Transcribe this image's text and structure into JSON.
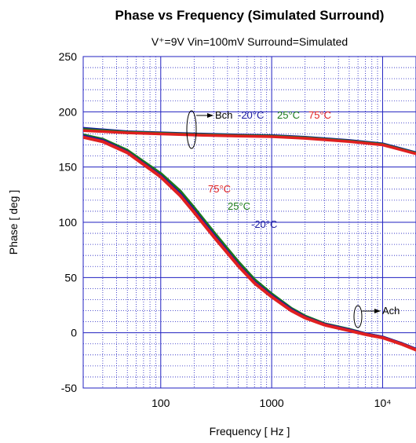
{
  "chart_data": {
    "type": "line",
    "title": "Phase vs Frequency (Simulated Surround)",
    "subtitle": "V⁺=9V Vin=100mV Surround=Simulated",
    "xlabel": "Frequency [ Hz ]",
    "ylabel": "Phase [ deg ]",
    "xscale": "log",
    "xlim": [
      20,
      20000
    ],
    "ylim": [
      -50,
      250
    ],
    "grid": "on",
    "x_ticks": [
      {
        "value": 100,
        "label": "100"
      },
      {
        "value": 1000,
        "label": "1000"
      },
      {
        "value": 10000,
        "label": "10⁴"
      }
    ],
    "y_ticks": [
      -50,
      0,
      50,
      100,
      150,
      200,
      250
    ],
    "colors": {
      "minus20": "#1a1aa0",
      "plus25": "#1a7a1a",
      "plus75": "#e02020",
      "grid": "#2020c0"
    },
    "series": [
      {
        "name": "Bch -20°C",
        "group": "Bch",
        "color": "#1a1aa0",
        "x": [
          20,
          50,
          100,
          200,
          500,
          1000,
          2000,
          5000,
          10000,
          20000
        ],
        "y": [
          185,
          182,
          181,
          180,
          179,
          178.5,
          177,
          174,
          171,
          163
        ]
      },
      {
        "name": "Bch 25°C",
        "group": "Bch",
        "color": "#1a7a1a",
        "x": [
          20,
          50,
          100,
          200,
          500,
          1000,
          2000,
          5000,
          10000,
          20000
        ],
        "y": [
          184,
          181.5,
          180.5,
          179.5,
          178.5,
          178,
          176.5,
          173.5,
          170.5,
          162.5
        ]
      },
      {
        "name": "Bch 75°C",
        "group": "Bch",
        "color": "#e02020",
        "x": [
          20,
          50,
          100,
          200,
          500,
          1000,
          2000,
          5000,
          10000,
          20000
        ],
        "y": [
          183,
          181,
          180,
          179,
          178,
          177.5,
          176,
          173,
          170,
          162
        ]
      },
      {
        "name": "Ach 25°C",
        "group": "Ach",
        "color": "#1a7a1a",
        "x": [
          20,
          30,
          50,
          100,
          150,
          200,
          300,
          500,
          700,
          1000,
          1500,
          2000,
          3000,
          5000,
          7000,
          10000,
          15000,
          20000
        ],
        "y": [
          179,
          175,
          165,
          144,
          128,
          113,
          91,
          64,
          48,
          35,
          22,
          15,
          8,
          3,
          -1,
          -4,
          -10,
          -15
        ]
      },
      {
        "name": "Ach -20°C",
        "group": "Ach",
        "color": "#1a1aa0",
        "x": [
          20,
          30,
          50,
          100,
          150,
          200,
          300,
          500,
          700,
          1000,
          1500,
          2000,
          3000,
          5000,
          7000,
          10000,
          15000,
          20000
        ],
        "y": [
          178,
          174,
          163.5,
          142,
          125.5,
          110.5,
          88.5,
          61.5,
          46,
          33.5,
          21,
          14,
          7.5,
          2.5,
          -1,
          -4,
          -10,
          -15
        ]
      },
      {
        "name": "Ach 75°C",
        "group": "Ach",
        "color": "#e02020",
        "x": [
          20,
          30,
          50,
          100,
          150,
          200,
          300,
          500,
          700,
          1000,
          1500,
          2000,
          3000,
          5000,
          7000,
          10000,
          15000,
          20000
        ],
        "y": [
          177,
          173,
          163,
          141,
          124,
          109,
          87,
          60.5,
          45,
          32.5,
          20,
          13.5,
          7,
          2,
          -1.5,
          -4.5,
          -10.5,
          -15.5
        ]
      }
    ],
    "annotations": {
      "bch": {
        "label": "Bch",
        "t1": "-20°C",
        "t2": "25°C",
        "t3": "75°C"
      },
      "ach": {
        "label": "Ach"
      },
      "ach_temps": {
        "t75": "75°C",
        "t25": "25°C",
        "tm20": "-20°C"
      }
    }
  }
}
